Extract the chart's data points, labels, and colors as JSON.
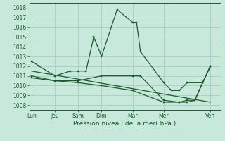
{
  "background_color": "#c8e8dc",
  "grid_color": "#99ccbb",
  "line_color": "#1a5c2a",
  "xlabel": "Pression niveau de la mer( hPa )",
  "ylim": [
    1007.5,
    1018.5
  ],
  "yticks": [
    1008,
    1009,
    1010,
    1011,
    1012,
    1013,
    1014,
    1015,
    1016,
    1017,
    1018
  ],
  "xtick_labels": [
    "Lun",
    "Jeu",
    "Sam",
    "Dim",
    "Mar",
    "Mer",
    "Ven"
  ],
  "xtick_positions": [
    0,
    3,
    6,
    9,
    13,
    17,
    23
  ],
  "xlim": [
    -0.3,
    24.3
  ],
  "series1": {
    "x": [
      0,
      1,
      3,
      5,
      6,
      7,
      8,
      9,
      11,
      13,
      13.5,
      14,
      17,
      18,
      19,
      20,
      22,
      23
    ],
    "y": [
      1012.5,
      1012.0,
      1011.0,
      1011.5,
      1011.5,
      1011.5,
      1015.0,
      1013.0,
      1017.8,
      1016.5,
      1016.5,
      1013.5,
      1010.3,
      1009.5,
      1009.5,
      1010.3,
      1010.3,
      1012.0
    ]
  },
  "series2": {
    "x": [
      0,
      3,
      6,
      9,
      13,
      14,
      17,
      19,
      20,
      21,
      22,
      23
    ],
    "y": [
      1011.0,
      1010.5,
      1010.5,
      1011.0,
      1011.0,
      1011.0,
      1008.5,
      1008.3,
      1008.3,
      1008.5,
      1010.3,
      1012.0
    ]
  },
  "series3": {
    "x": [
      0,
      3,
      6,
      9,
      13,
      17,
      19,
      20,
      21,
      22,
      23
    ],
    "y": [
      1010.8,
      1010.5,
      1010.3,
      1010.0,
      1009.5,
      1008.3,
      1008.3,
      1008.5,
      1008.5,
      1010.3,
      1012.0
    ]
  },
  "series_trend": {
    "x": [
      0,
      23
    ],
    "y": [
      1011.5,
      1008.3
    ]
  }
}
